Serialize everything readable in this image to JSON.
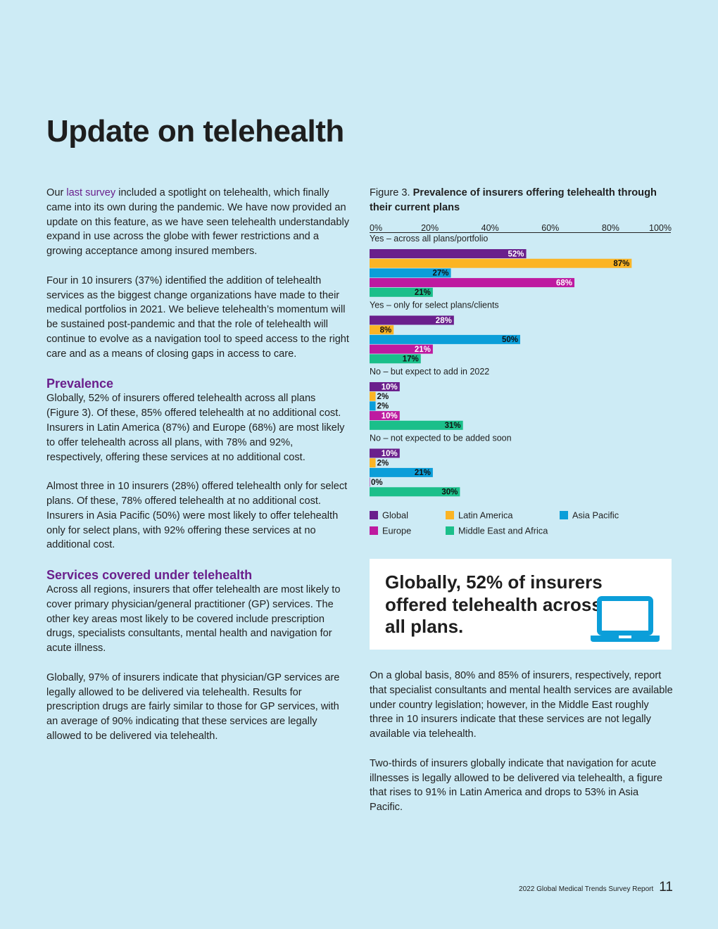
{
  "page": {
    "title": "Update on telehealth",
    "footer_text": "2022 Global Medical Trends Survey Report",
    "page_number": "11"
  },
  "left": {
    "p1_before": "Our ",
    "p1_link": "last survey",
    "p1_after": " included a spotlight on telehealth, which finally came into its own during the pandemic. We have now provided an update on this feature, as we have seen telehealth understandably expand in use across the globe with fewer restrictions and a growing acceptance among insured members.",
    "p2": "Four in 10 insurers (37%) identified the addition of telehealth services as the biggest change organizations have made to their medical portfolios in 2021. We believe telehealth’s momentum will be sustained post-pandemic and that the role of telehealth will continue to evolve as a navigation tool to speed access to the right care and as a means of closing gaps in access to care.",
    "h_prevalence": "Prevalence",
    "p3": "Globally, 52% of insurers offered telehealth across all plans (Figure 3). Of these, 85% offered telehealth at no additional cost. Insurers in Latin America (87%) and Europe (68%) are most likely to offer telehealth across all plans, with 78% and 92%, respectively, offering these services at no additional cost.",
    "p4": "Almost three in 10 insurers (28%) offered telehealth only for select plans. Of these, 78% offered telehealth at no additional cost. Insurers in Asia Pacific (50%) were most likely to offer telehealth only for select plans, with 92% offering these services at no additional cost.",
    "h_services": "Services covered under telehealth",
    "p5": "Across all regions, insurers that offer telehealth are most likely to cover primary physician/general practitioner (GP) services. The other key areas most likely to be covered include prescription drugs, specialists consultants, mental health and navigation for acute illness.",
    "p6": "Globally, 97% of insurers indicate that physician/GP services are legally allowed to be delivered via telehealth. Results for prescription drugs are fairly similar to those for GP services, with an average of 90% indicating that these services are legally allowed to be delivered via telehealth."
  },
  "figure": {
    "label": "Figure 3. ",
    "title": "Prevalence of insurers offering telehealth through their current plans"
  },
  "chart_data": {
    "type": "bar",
    "orientation": "horizontal",
    "title": "Prevalence of insurers offering telehealth through their current plans",
    "x_ticks": [
      "0%",
      "20%",
      "40%",
      "60%",
      "80%",
      "100%"
    ],
    "xlim": [
      0,
      100
    ],
    "groups": [
      "Yes – across all plans/portfolio",
      "Yes – only for select plans/clients",
      "No – but expect to add in 2022",
      "No – not expected to be added soon"
    ],
    "series": [
      {
        "name": "Global",
        "color": "#6a1f8c",
        "values": [
          52,
          28,
          10,
          10
        ]
      },
      {
        "name": "Latin America",
        "color": "#fbb424",
        "values": [
          87,
          8,
          2,
          2
        ]
      },
      {
        "name": "Asia Pacific",
        "color": "#0b9ed9",
        "values": [
          27,
          50,
          2,
          21
        ]
      },
      {
        "name": "Europe",
        "color": "#be1aa0",
        "values": [
          68,
          21,
          10,
          0
        ]
      },
      {
        "name": "Middle East and Africa",
        "color": "#1bbf8a",
        "values": [
          21,
          17,
          31,
          30
        ]
      }
    ],
    "legend_order": [
      "Global",
      "Latin America",
      "Asia Pacific",
      "Europe",
      "Middle East and Africa"
    ]
  },
  "callout": {
    "text": "Globally, 52% of insurers offered telehealth across all plans.",
    "icon": "laptop-icon",
    "icon_color": "#0b9ed9"
  },
  "right": {
    "p1": "On a global basis, 80% and 85% of insurers, respectively, report that specialist consultants and mental health services are available under country legislation; however, in the Middle East roughly three in 10 insurers indicate that these services are not legally available via telehealth.",
    "p2": "Two-thirds of insurers globally indicate that navigation for acute illnesses is legally allowed to be delivered via telehealth, a figure that rises to 91% in Latin America and drops to 53% in Asia Pacific."
  }
}
